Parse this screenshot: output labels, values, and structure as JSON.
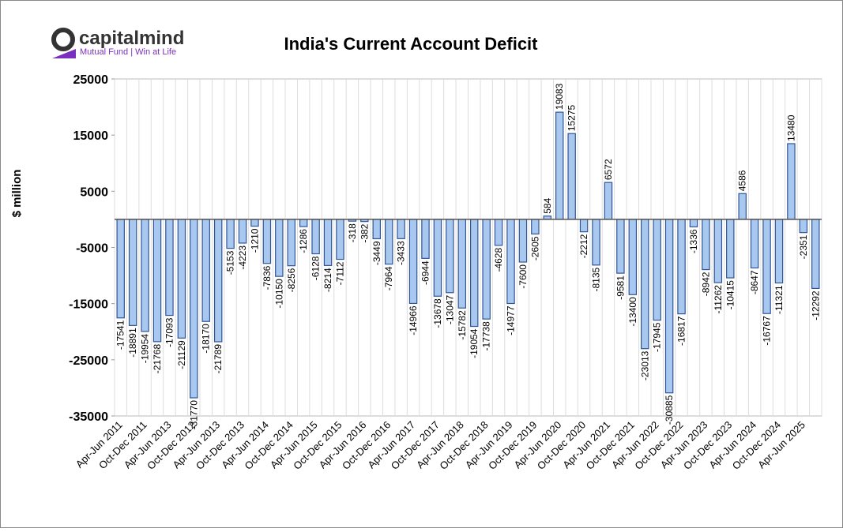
{
  "logo": {
    "name": "capitalmind",
    "tagline": "Mutual Fund | Win at Life"
  },
  "chart_data": {
    "type": "bar",
    "title": "India's Current Account Deficit",
    "y_label": "$ million",
    "categories": [
      "Apr-Jun 2011",
      null,
      "Oct-Dec 2011",
      null,
      "Apr-Jun 2013",
      null,
      "Oct-Dec 2012",
      null,
      "Apr-Jun 2013",
      null,
      "Oct-Dec 2013",
      null,
      "Apr-Jun 2014",
      null,
      "Oct-Dec 2014",
      null,
      "Apr-Jun 2015",
      null,
      "Oct-Dec 2015",
      null,
      "Apr-Jun 2016",
      null,
      "Oct-Dec 2016",
      null,
      "Apr-Jun 2017",
      null,
      "Oct-Dec 2017",
      null,
      "Apr-Jun 2018",
      null,
      "Oct-Dec 2018",
      null,
      "Apr-Jun 2019",
      null,
      "Oct-Dec 2019",
      null,
      "Apr-Jun 2020",
      null,
      "Oct-Dec 2020",
      null,
      "Apr-Jun 2021",
      null,
      "Oct-Dec 2021",
      null,
      "Apr-Jun 2022",
      null,
      "Oct-Dec 2022",
      null,
      "Apr-Jun 2023",
      null,
      "Oct-Dec 2023",
      null,
      "Apr-Jun 2024",
      null,
      "Oct-Dec 2024",
      null,
      "Apr-Jun 2025",
      null
    ],
    "values": [
      -17541,
      -18891,
      -19954,
      -21768,
      -17093,
      -21129,
      -31770,
      -18170,
      -21789,
      -5153,
      -4223,
      -1210,
      -7836,
      -10150,
      -8256,
      -1286,
      -6128,
      -8214,
      -7112,
      -318,
      -382,
      -3449,
      -7964,
      -3433,
      -14966,
      -6944,
      -13678,
      -13047,
      -15782,
      -19054,
      -17738,
      -4628,
      -14977,
      -7600,
      -2605,
      584,
      19083,
      15275,
      -2212,
      -8135,
      6572,
      -9581,
      -13400,
      -23013,
      -17945,
      -30885,
      -16817,
      -1336,
      -8942,
      -11262,
      -10415,
      4586,
      -8647,
      -16767,
      -11321,
      13480,
      -2351,
      -12292
    ],
    "color": "#a9c8f0",
    "edge_color": "#2f5597",
    "ylim": [
      -35000,
      25000
    ],
    "yticks": [
      25000,
      15000,
      5000,
      -5000,
      -15000,
      -25000,
      -35000
    ],
    "grid": true
  }
}
